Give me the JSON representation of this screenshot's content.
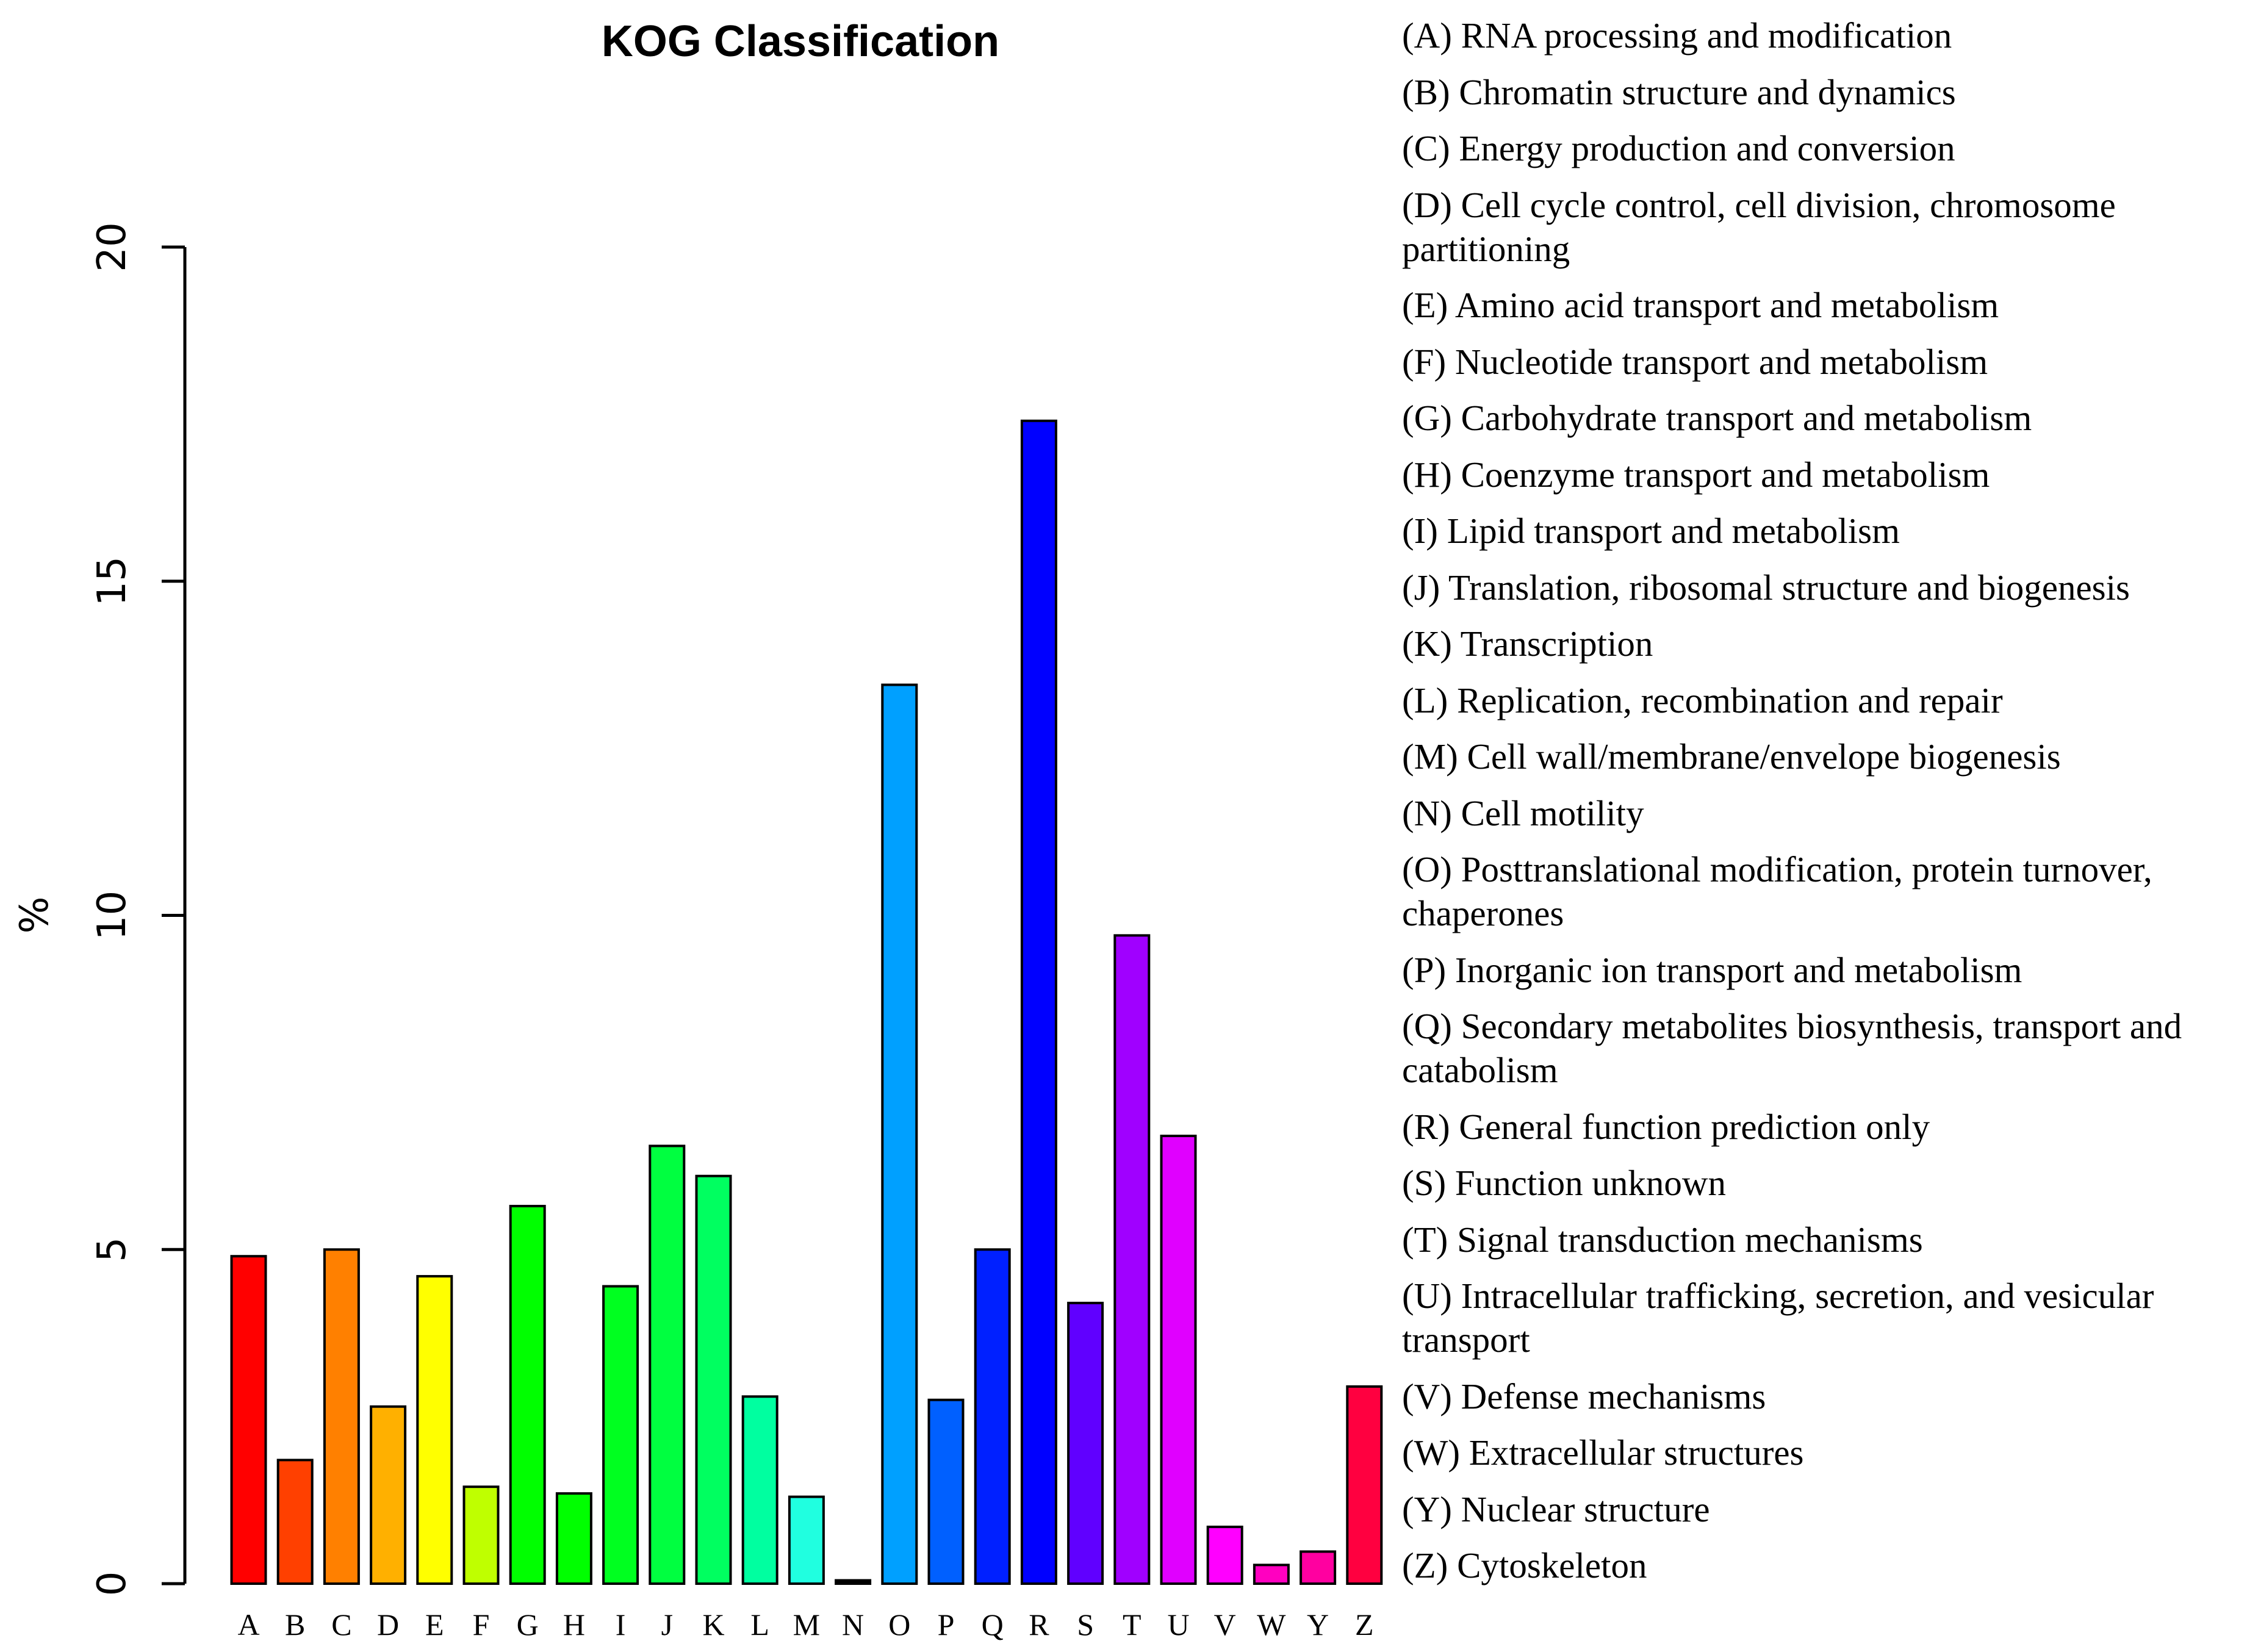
{
  "chart_data": {
    "type": "bar",
    "title": "KOG Classification",
    "xlabel": "",
    "ylabel": "%",
    "ylim": [
      0,
      20
    ],
    "yticks": [
      "0",
      "5",
      "10",
      "15",
      "20"
    ],
    "categories": [
      "A",
      "B",
      "C",
      "D",
      "E",
      "F",
      "G",
      "H",
      "I",
      "J",
      "K",
      "L",
      "M",
      "N",
      "O",
      "P",
      "Q",
      "R",
      "S",
      "T",
      "U",
      "V",
      "W",
      "Y",
      "Z"
    ],
    "values": [
      4.9,
      1.85,
      5.0,
      2.65,
      4.6,
      1.45,
      5.65,
      1.35,
      4.45,
      6.55,
      6.1,
      2.8,
      1.3,
      0.05,
      13.45,
      2.75,
      5.0,
      17.4,
      4.2,
      9.7,
      6.7,
      0.85,
      0.28,
      0.48,
      2.95
    ],
    "colors": [
      "#ff0000",
      "#ff4000",
      "#ff8000",
      "#ffbf00",
      "#ffff00",
      "#bfff00",
      "#40ff00",
      "#00ff00",
      "#00ff40",
      "#00ff80",
      "#00ffbf",
      "#00ffff",
      "#00bfff",
      "#0080ff",
      "#0040ff",
      "#0000ff",
      "#4000ff",
      "#8000ff",
      "#bf00ff",
      "#ff00ff",
      "#ff00bf",
      "#ff0080",
      "#ff0040",
      "#ff0000"
    ],
    "bar_colors": [
      "#ff0000",
      "#ff4000",
      "#ff8000",
      "#ffb000",
      "#ffff00",
      "#bfff00",
      "#00ff00",
      "#00ff00",
      "#00ff20",
      "#00ff40",
      "#00ff60",
      "#00ffa0",
      "#20ffe0",
      "#000000",
      "#00a0ff",
      "#0060ff",
      "#0020ff",
      "#0000ff",
      "#6000ff",
      "#a000ff",
      "#e000ff",
      "#ff00ff",
      "#ff00c0",
      "#ff00a0",
      "#ff0040"
    ],
    "legend": [
      "(A) RNA processing and modification",
      "(B) Chromatin structure and dynamics",
      "(C) Energy production and conversion",
      "(D) Cell cycle control, cell division, chromosome partitioning",
      "(E) Amino acid transport and metabolism",
      "(F) Nucleotide transport and metabolism",
      "(G) Carbohydrate transport and metabolism",
      "(H) Coenzyme transport and metabolism",
      "(I) Lipid transport and metabolism",
      "(J) Translation, ribosomal structure and biogenesis",
      "(K) Transcription",
      "(L) Replication, recombination and repair",
      "(M) Cell wall/membrane/envelope biogenesis",
      "(N) Cell motility",
      "(O) Posttranslational modification, protein turnover, chaperones",
      "(P) Inorganic ion transport and metabolism",
      "(Q) Secondary metabolites biosynthesis, transport and catabolism",
      "(R) General function prediction only",
      "(S) Function unknown",
      "(T) Signal transduction mechanisms",
      "(U) Intracellular trafficking, secretion, and vesicular transport",
      "(V) Defense mechanisms",
      "(W) Extracellular structures",
      "(Y) Nuclear structure",
      "(Z) Cytoskeleton"
    ],
    "legend_placement": "right",
    "grid": false
  }
}
